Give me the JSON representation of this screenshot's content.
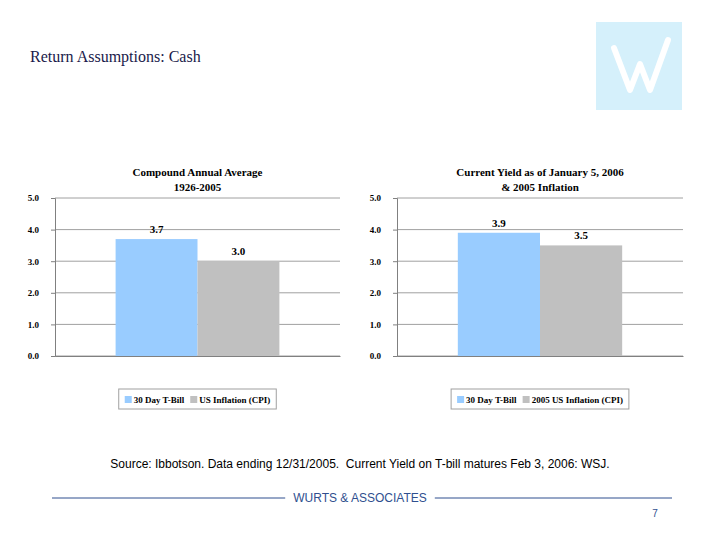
{
  "page": {
    "title": "Return Assumptions: Cash",
    "source": "Source: Ibbotson. Data ending 12/31/2005.  Current Yield on T-bill matures Feb 3, 2006: WSJ.",
    "footer": "WURTS & ASSOCIATES",
    "page_number": 7
  },
  "chart_data": [
    {
      "type": "bar",
      "title": "Compound Annual Average",
      "subtitle": "1926-2005",
      "categories": [
        null
      ],
      "series": [
        {
          "name": "30 Day T-Bill",
          "color": "#99ccff",
          "values": [
            3.7
          ]
        },
        {
          "name": "US Inflation (CPI)",
          "color": "#c0c0c0",
          "values": [
            3.0
          ],
          "value_labels": [
            "3.0"
          ]
        }
      ],
      "ylim": [
        0,
        5
      ],
      "yticks": [
        {
          "value": 0,
          "label": "0.0"
        },
        {
          "value": 1,
          "label": "1.0"
        },
        {
          "value": 2,
          "label": "2.0"
        },
        {
          "value": 3,
          "label": "3.0"
        },
        {
          "value": 4,
          "label": "4.0"
        },
        {
          "value": 5,
          "label": "5.0"
        }
      ],
      "grid": true,
      "legend": "bottom",
      "data_labels": true
    },
    {
      "type": "bar",
      "title": "Current Yield as of January 5, 2006",
      "subtitle": "& 2005 Inflation",
      "categories": [
        null
      ],
      "series": [
        {
          "name": "30 Day T-Bill",
          "color": "#99ccff",
          "values": [
            3.9
          ]
        },
        {
          "name": "2005 US Inflation (CPI)",
          "color": "#c0c0c0",
          "values": [
            3.5
          ]
        }
      ],
      "ylim": [
        0,
        5
      ],
      "yticks": [
        {
          "value": 0,
          "label": "0.0"
        },
        {
          "value": 1,
          "label": "1.0"
        },
        {
          "value": 2,
          "label": "2.0"
        },
        {
          "value": 3,
          "label": "3.0"
        },
        {
          "value": 4,
          "label": "4.0"
        },
        {
          "value": 5,
          "label": "5.0"
        }
      ],
      "grid": true,
      "legend": "bottom",
      "data_labels": true
    }
  ]
}
